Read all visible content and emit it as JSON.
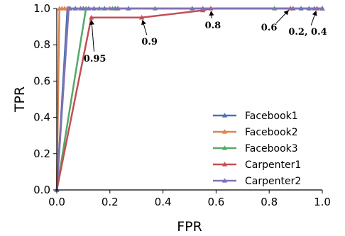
{
  "chart_data": {
    "type": "line",
    "xlabel": "FPR",
    "ylabel": "TPR",
    "xlim": [
      0.0,
      1.0
    ],
    "ylim": [
      0.0,
      1.0
    ],
    "x_ticks": [
      "0.0",
      "0.2",
      "0.4",
      "0.6",
      "0.8",
      "1.0"
    ],
    "y_ticks": [
      "0.0",
      "0.2",
      "0.4",
      "0.6",
      "0.8",
      "1.0"
    ],
    "grid": false,
    "legend_position": "bottom-right",
    "series": [
      {
        "name": "Facebook1",
        "color": "#4C72B0",
        "points": [
          [
            0.0,
            0.0
          ],
          [
            0.04,
            1.0
          ],
          [
            0.05,
            1.0
          ],
          [
            0.07,
            1.0
          ],
          [
            0.1,
            1.0
          ],
          [
            0.14,
            1.0
          ],
          [
            0.18,
            1.0
          ],
          [
            0.22,
            1.0
          ],
          [
            0.27,
            1.0
          ],
          [
            0.51,
            1.0
          ],
          [
            0.89,
            1.0
          ],
          [
            0.92,
            1.0
          ],
          [
            0.95,
            1.0
          ],
          [
            1.0,
            1.0
          ]
        ]
      },
      {
        "name": "Facebook2",
        "color": "#DD8452",
        "points": [
          [
            0.0,
            0.0
          ],
          [
            0.01,
            1.0
          ],
          [
            0.02,
            1.0
          ],
          [
            0.03,
            1.0
          ],
          [
            0.04,
            1.0
          ],
          [
            0.2,
            1.0
          ],
          [
            0.23,
            1.0
          ],
          [
            1.0,
            1.0
          ]
        ]
      },
      {
        "name": "Facebook3",
        "color": "#55A868",
        "points": [
          [
            0.0,
            0.0
          ],
          [
            0.11,
            1.0
          ],
          [
            0.16,
            1.0
          ],
          [
            0.21,
            1.0
          ],
          [
            0.37,
            1.0
          ],
          [
            0.82,
            1.0
          ],
          [
            1.0,
            1.0
          ]
        ]
      },
      {
        "name": "Carpenter1",
        "color": "#C44E52",
        "points": [
          [
            0.0,
            0.0
          ],
          [
            0.13,
            0.95
          ],
          [
            0.32,
            0.95
          ],
          [
            0.55,
            0.99
          ],
          [
            0.58,
            1.0
          ],
          [
            0.88,
            1.0
          ],
          [
            0.98,
            1.0
          ],
          [
            1.0,
            1.0
          ]
        ]
      },
      {
        "name": "Carpenter2",
        "color": "#8172B3",
        "points": [
          [
            0.0,
            0.0
          ],
          [
            0.045,
            1.0
          ],
          [
            0.09,
            1.0
          ],
          [
            0.12,
            1.0
          ],
          [
            0.23,
            1.0
          ],
          [
            0.55,
            1.0
          ],
          [
            0.97,
            1.0
          ],
          [
            1.0,
            1.0
          ]
        ]
      }
    ],
    "annotations": [
      {
        "text": "0.95",
        "x": 0.13,
        "y": 0.95
      },
      {
        "text": "0.9",
        "x": 0.32,
        "y": 0.95
      },
      {
        "text": "0.8",
        "x": 0.58,
        "y": 1.0
      },
      {
        "text": "0.6",
        "x": 0.88,
        "y": 1.0
      },
      {
        "text": "0.2, 0.4",
        "x": 0.98,
        "y": 1.0
      }
    ]
  }
}
